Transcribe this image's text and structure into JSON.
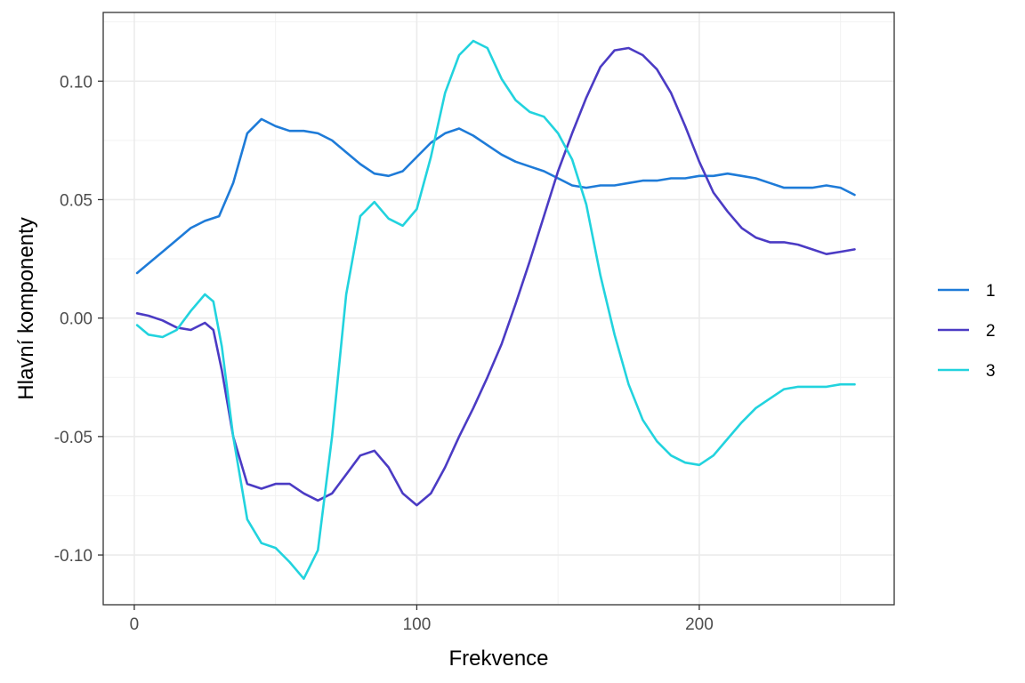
{
  "chart_data": {
    "type": "line",
    "title": "",
    "xlabel": "Frekvence",
    "ylabel": "Hlavní komponenty",
    "xlim": [
      -11,
      269
    ],
    "ylim": [
      -0.121,
      0.129
    ],
    "x_ticks": [
      0,
      100,
      200
    ],
    "x_tick_labels": [
      "0",
      "100",
      "200"
    ],
    "y_ticks": [
      -0.1,
      -0.05,
      0.0,
      0.05,
      0.1
    ],
    "y_tick_labels": [
      "-0.10",
      "-0.05",
      "0.00",
      "0.05",
      "0.10"
    ],
    "grid": true,
    "legend_position": "right",
    "series": [
      {
        "name": "1",
        "color": "#1E7BD8",
        "points": [
          [
            1,
            0.019
          ],
          [
            5,
            0.023
          ],
          [
            10,
            0.028
          ],
          [
            15,
            0.033
          ],
          [
            20,
            0.038
          ],
          [
            25,
            0.041
          ],
          [
            30,
            0.043
          ],
          [
            35,
            0.057
          ],
          [
            40,
            0.078
          ],
          [
            45,
            0.084
          ],
          [
            50,
            0.081
          ],
          [
            55,
            0.079
          ],
          [
            60,
            0.079
          ],
          [
            65,
            0.078
          ],
          [
            70,
            0.075
          ],
          [
            75,
            0.07
          ],
          [
            80,
            0.065
          ],
          [
            85,
            0.061
          ],
          [
            90,
            0.06
          ],
          [
            95,
            0.062
          ],
          [
            100,
            0.068
          ],
          [
            105,
            0.074
          ],
          [
            110,
            0.078
          ],
          [
            115,
            0.08
          ],
          [
            120,
            0.077
          ],
          [
            125,
            0.073
          ],
          [
            130,
            0.069
          ],
          [
            135,
            0.066
          ],
          [
            140,
            0.064
          ],
          [
            145,
            0.062
          ],
          [
            150,
            0.059
          ],
          [
            155,
            0.056
          ],
          [
            160,
            0.055
          ],
          [
            165,
            0.056
          ],
          [
            170,
            0.056
          ],
          [
            175,
            0.057
          ],
          [
            180,
            0.058
          ],
          [
            185,
            0.058
          ],
          [
            190,
            0.059
          ],
          [
            195,
            0.059
          ],
          [
            200,
            0.06
          ],
          [
            205,
            0.06
          ],
          [
            210,
            0.061
          ],
          [
            215,
            0.06
          ],
          [
            220,
            0.059
          ],
          [
            225,
            0.057
          ],
          [
            230,
            0.055
          ],
          [
            235,
            0.055
          ],
          [
            240,
            0.055
          ],
          [
            245,
            0.056
          ],
          [
            250,
            0.055
          ],
          [
            255,
            0.052
          ]
        ]
      },
      {
        "name": "2",
        "color": "#4B3BC4",
        "points": [
          [
            1,
            0.002
          ],
          [
            5,
            0.001
          ],
          [
            10,
            -0.001
          ],
          [
            15,
            -0.004
          ],
          [
            20,
            -0.005
          ],
          [
            25,
            -0.002
          ],
          [
            28,
            -0.005
          ],
          [
            31,
            -0.022
          ],
          [
            35,
            -0.05
          ],
          [
            40,
            -0.07
          ],
          [
            45,
            -0.072
          ],
          [
            50,
            -0.07
          ],
          [
            55,
            -0.07
          ],
          [
            60,
            -0.074
          ],
          [
            65,
            -0.077
          ],
          [
            70,
            -0.074
          ],
          [
            75,
            -0.066
          ],
          [
            80,
            -0.058
          ],
          [
            85,
            -0.056
          ],
          [
            90,
            -0.063
          ],
          [
            95,
            -0.074
          ],
          [
            100,
            -0.079
          ],
          [
            105,
            -0.074
          ],
          [
            110,
            -0.063
          ],
          [
            115,
            -0.05
          ],
          [
            120,
            -0.038
          ],
          [
            125,
            -0.025
          ],
          [
            130,
            -0.011
          ],
          [
            135,
            0.006
          ],
          [
            140,
            0.024
          ],
          [
            145,
            0.043
          ],
          [
            150,
            0.062
          ],
          [
            155,
            0.078
          ],
          [
            160,
            0.093
          ],
          [
            165,
            0.106
          ],
          [
            170,
            0.113
          ],
          [
            175,
            0.114
          ],
          [
            180,
            0.111
          ],
          [
            185,
            0.105
          ],
          [
            190,
            0.095
          ],
          [
            195,
            0.081
          ],
          [
            200,
            0.066
          ],
          [
            205,
            0.053
          ],
          [
            210,
            0.045
          ],
          [
            215,
            0.038
          ],
          [
            220,
            0.034
          ],
          [
            225,
            0.032
          ],
          [
            230,
            0.032
          ],
          [
            235,
            0.031
          ],
          [
            240,
            0.029
          ],
          [
            245,
            0.027
          ],
          [
            250,
            0.028
          ],
          [
            255,
            0.029
          ]
        ]
      },
      {
        "name": "3",
        "color": "#22D3DE",
        "points": [
          [
            1,
            -0.003
          ],
          [
            5,
            -0.007
          ],
          [
            10,
            -0.008
          ],
          [
            15,
            -0.005
          ],
          [
            20,
            0.003
          ],
          [
            25,
            0.01
          ],
          [
            28,
            0.007
          ],
          [
            31,
            -0.012
          ],
          [
            35,
            -0.05
          ],
          [
            40,
            -0.085
          ],
          [
            45,
            -0.095
          ],
          [
            50,
            -0.097
          ],
          [
            55,
            -0.103
          ],
          [
            60,
            -0.11
          ],
          [
            65,
            -0.098
          ],
          [
            70,
            -0.05
          ],
          [
            75,
            0.01
          ],
          [
            80,
            0.043
          ],
          [
            85,
            0.049
          ],
          [
            90,
            0.042
          ],
          [
            95,
            0.039
          ],
          [
            100,
            0.046
          ],
          [
            105,
            0.068
          ],
          [
            110,
            0.095
          ],
          [
            115,
            0.111
          ],
          [
            120,
            0.117
          ],
          [
            125,
            0.114
          ],
          [
            130,
            0.101
          ],
          [
            135,
            0.092
          ],
          [
            140,
            0.087
          ],
          [
            145,
            0.085
          ],
          [
            150,
            0.078
          ],
          [
            155,
            0.067
          ],
          [
            160,
            0.048
          ],
          [
            165,
            0.018
          ],
          [
            170,
            -0.007
          ],
          [
            175,
            -0.028
          ],
          [
            180,
            -0.043
          ],
          [
            185,
            -0.052
          ],
          [
            190,
            -0.058
          ],
          [
            195,
            -0.061
          ],
          [
            200,
            -0.062
          ],
          [
            205,
            -0.058
          ],
          [
            210,
            -0.051
          ],
          [
            215,
            -0.044
          ],
          [
            220,
            -0.038
          ],
          [
            225,
            -0.034
          ],
          [
            230,
            -0.03
          ],
          [
            235,
            -0.029
          ],
          [
            240,
            -0.029
          ],
          [
            245,
            -0.029
          ],
          [
            250,
            -0.028
          ],
          [
            255,
            -0.028
          ]
        ]
      }
    ]
  }
}
